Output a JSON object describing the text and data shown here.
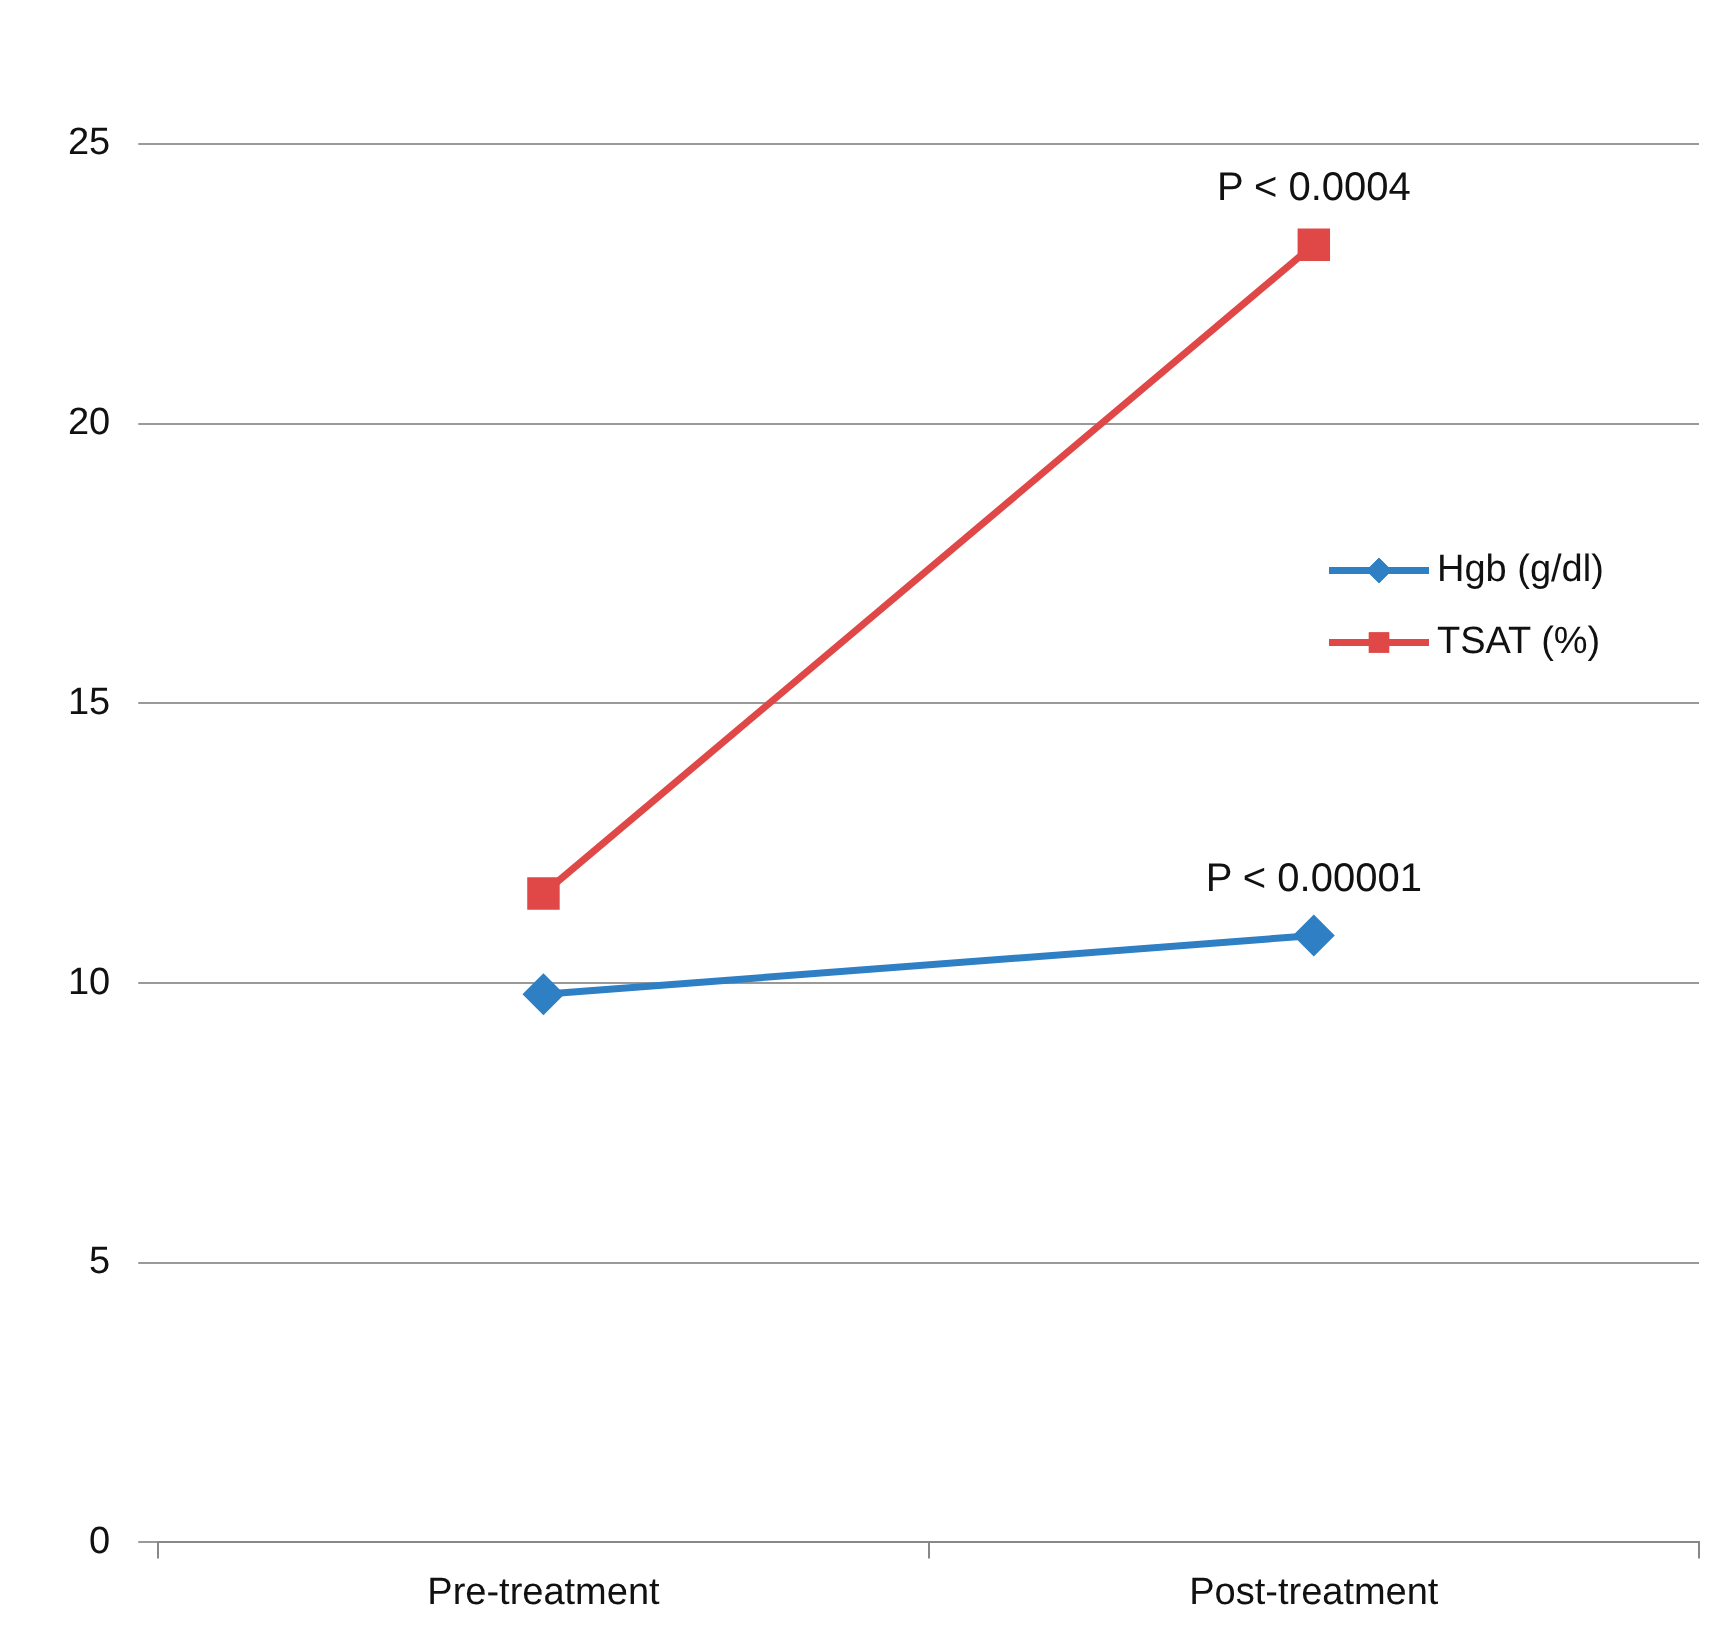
{
  "chart_data": {
    "type": "line",
    "categories": [
      "Pre-treatment",
      "Post-treatment"
    ],
    "series": [
      {
        "name": "Hgb (g/dl)",
        "color": "#2e7fc4",
        "values": [
          9.8,
          10.85
        ],
        "marker": "diamond"
      },
      {
        "name": "TSAT (%)",
        "color": "#e04848",
        "values": [
          11.6,
          23.2
        ],
        "marker": "square"
      }
    ],
    "ylim": [
      0,
      25
    ],
    "yticks": [
      0,
      5,
      10,
      15,
      20,
      25
    ],
    "grid": "y",
    "legend": "right",
    "line_style": "solid",
    "annotations": [
      {
        "text": "P < 0.0004",
        "x": "Post-treatment",
        "y": 23.2
      },
      {
        "text": "P < 0.00001",
        "x": "Post-treatment",
        "y": 10.85
      }
    ]
  }
}
